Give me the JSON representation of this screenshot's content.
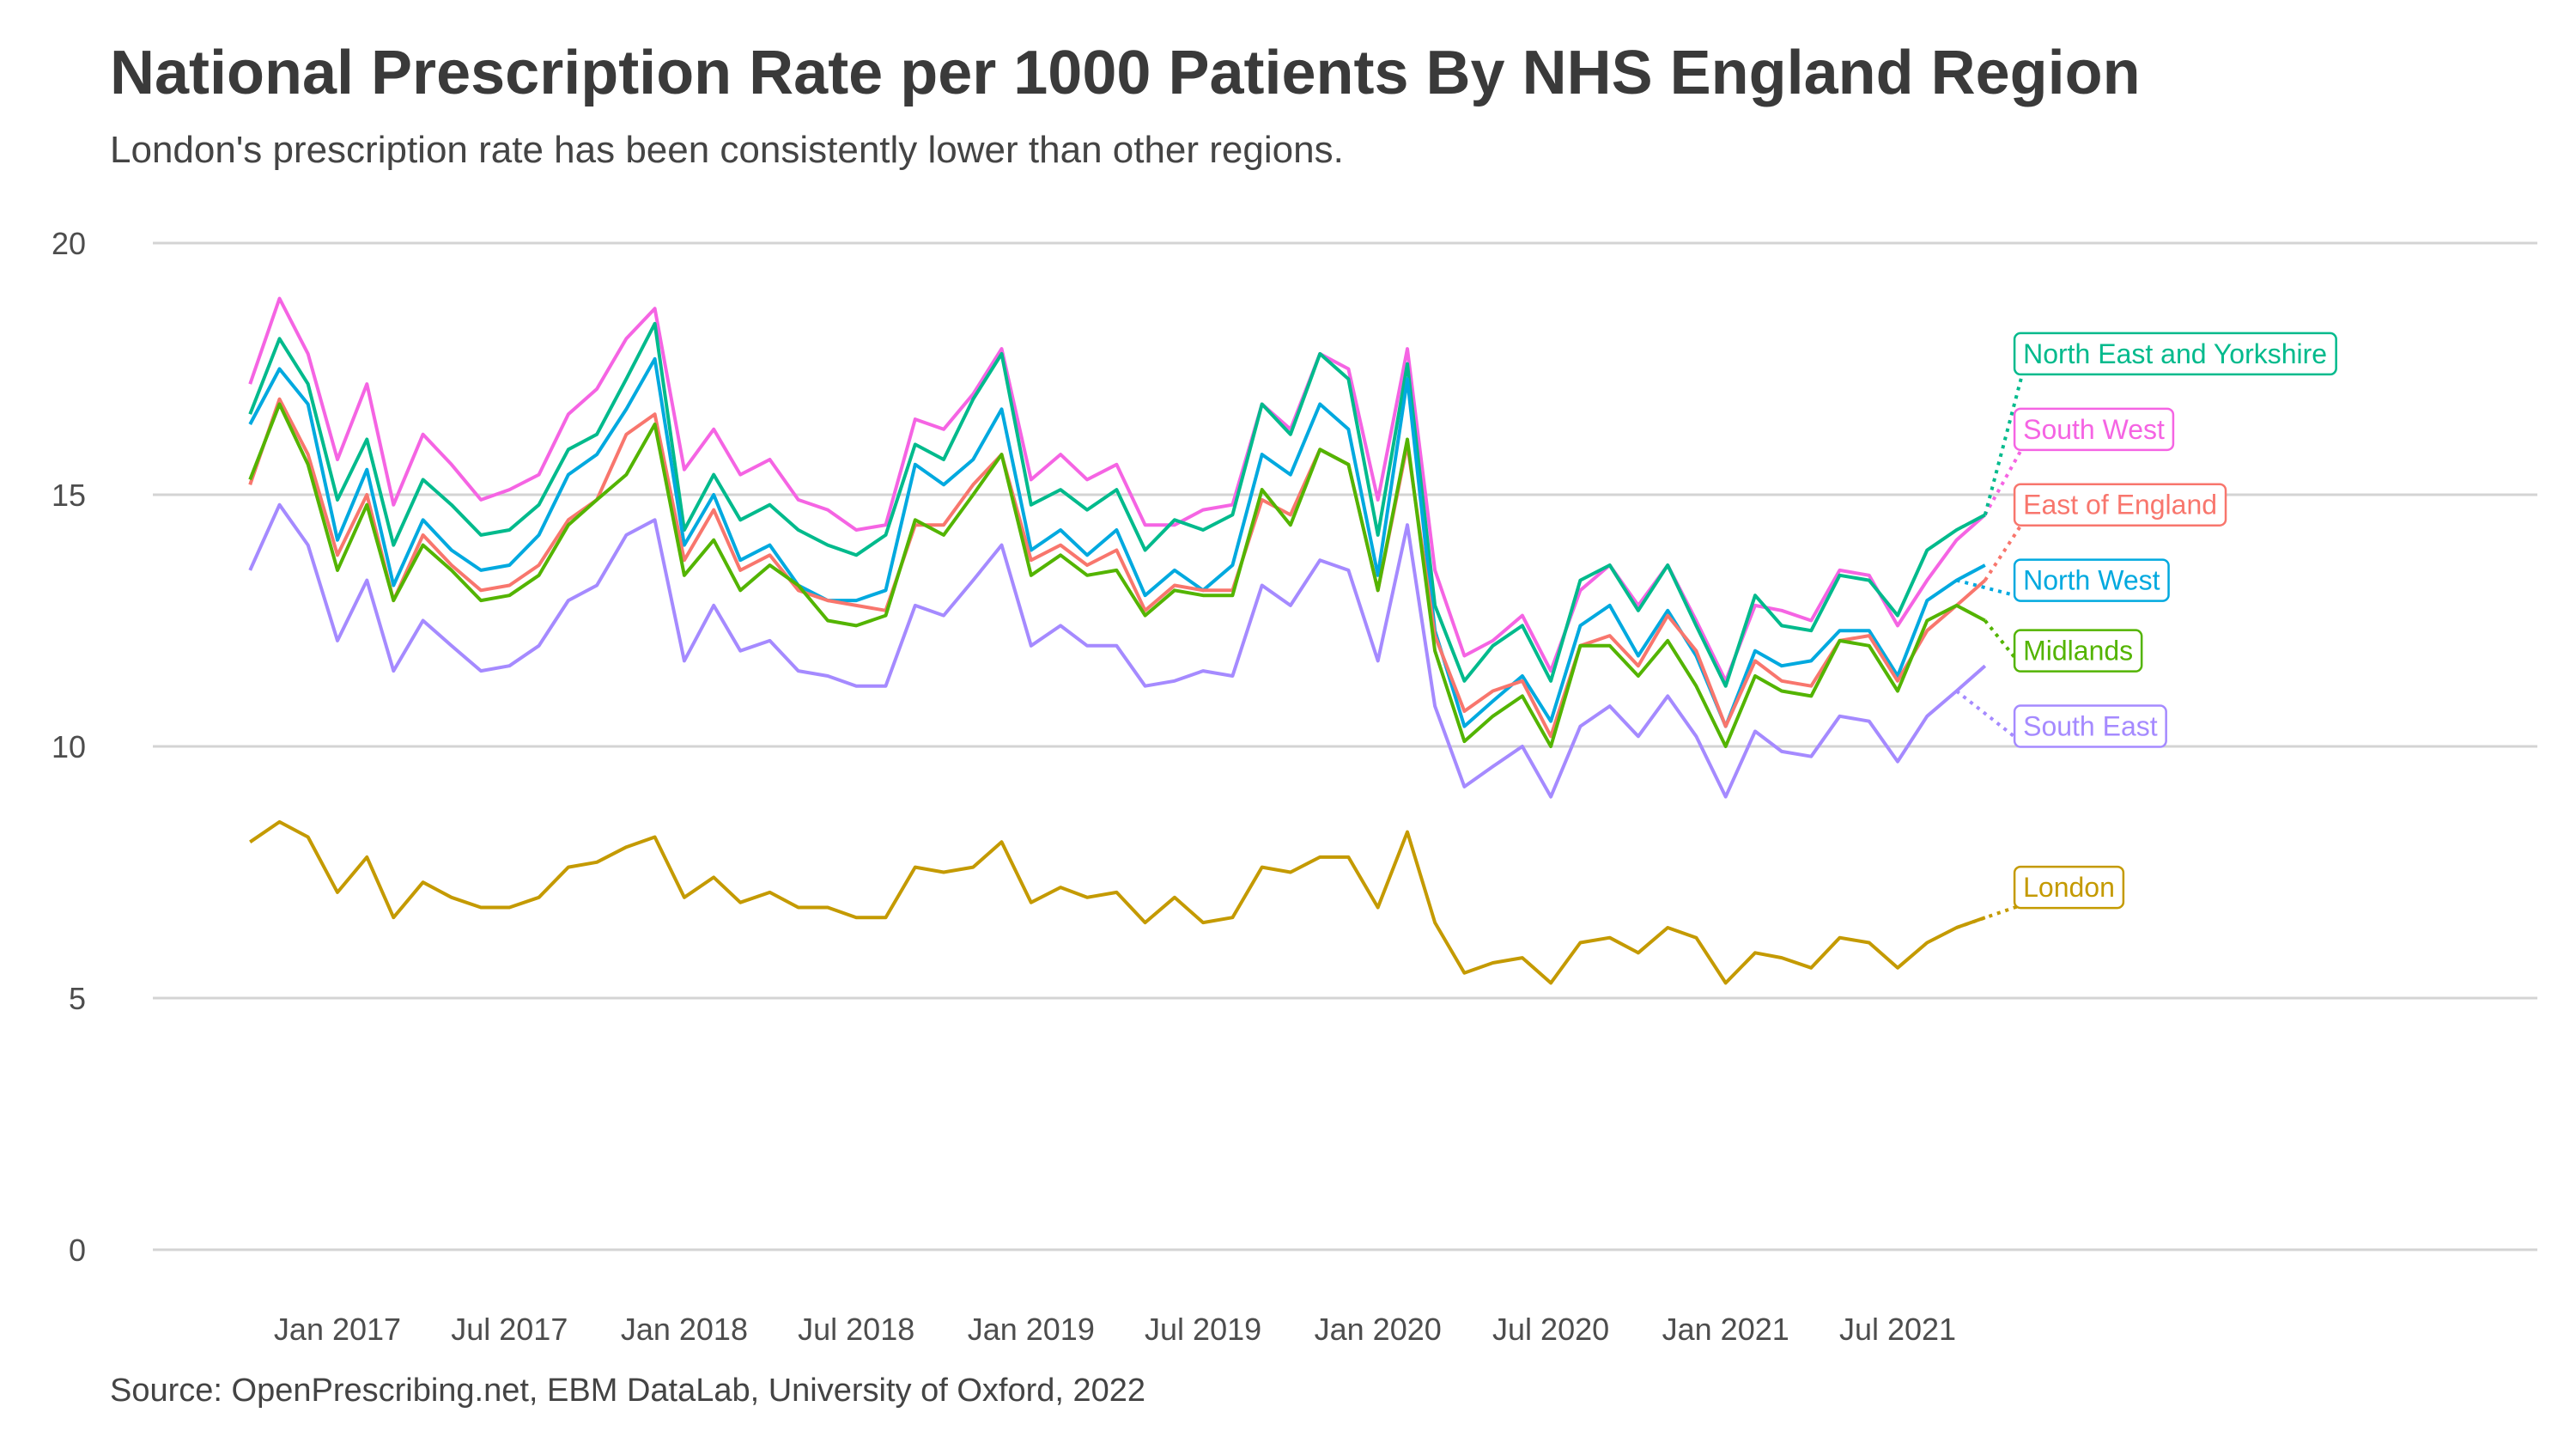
{
  "title": "National Prescription Rate per 1000 Patients By NHS England Region",
  "subtitle": "London's prescription rate has been consistently lower than other regions.",
  "caption": "Source: OpenPrescribing.net, EBM DataLab, University of Oxford, 2022",
  "chart_data": {
    "type": "line",
    "ylim": [
      0,
      20
    ],
    "yticks": [
      0,
      5,
      10,
      15,
      20
    ],
    "xlim": [
      "2016-09-01",
      "2022-11-01"
    ],
    "xticks": [
      {
        "date": "2017-01-01",
        "label": "Jan 2017"
      },
      {
        "date": "2017-07-01",
        "label": "Jul 2017"
      },
      {
        "date": "2018-01-01",
        "label": "Jan 2018"
      },
      {
        "date": "2018-07-01",
        "label": "Jul 2018"
      },
      {
        "date": "2019-01-01",
        "label": "Jan 2019"
      },
      {
        "date": "2019-07-01",
        "label": "Jul 2019"
      },
      {
        "date": "2020-01-01",
        "label": "Jan 2020"
      },
      {
        "date": "2020-07-01",
        "label": "Jul 2020"
      },
      {
        "date": "2021-01-01",
        "label": "Jan 2021"
      },
      {
        "date": "2021-07-01",
        "label": "Jul 2021"
      }
    ],
    "grid": "horizontal",
    "legend": "direct labels at line ends",
    "x": [
      "2016-10",
      "2016-11",
      "2016-12",
      "2017-01",
      "2017-02",
      "2017-03",
      "2017-04",
      "2017-05",
      "2017-06",
      "2017-07",
      "2017-08",
      "2017-09",
      "2017-10",
      "2017-11",
      "2017-12",
      "2018-01",
      "2018-02",
      "2018-03",
      "2018-04",
      "2018-05",
      "2018-06",
      "2018-07",
      "2018-08",
      "2018-09",
      "2018-10",
      "2018-11",
      "2018-12",
      "2019-01",
      "2019-02",
      "2019-03",
      "2019-04",
      "2019-05",
      "2019-06",
      "2019-07",
      "2019-08",
      "2019-09",
      "2019-10",
      "2019-11",
      "2019-12",
      "2020-01",
      "2020-02",
      "2020-03",
      "2020-04",
      "2020-05",
      "2020-06",
      "2020-07",
      "2020-08",
      "2020-09",
      "2020-10",
      "2020-11",
      "2020-12",
      "2021-01",
      "2021-02",
      "2021-03",
      "2021-04",
      "2021-05",
      "2021-06",
      "2021-07",
      "2021-08",
      "2021-09",
      "2021-10"
    ],
    "series": [
      {
        "name": "South West",
        "color": "#F564E3",
        "values": [
          17.2,
          18.9,
          17.8,
          15.7,
          17.2,
          14.8,
          16.2,
          15.6,
          14.9,
          15.1,
          15.4,
          16.6,
          17.1,
          18.1,
          18.7,
          15.5,
          16.3,
          15.4,
          15.7,
          14.9,
          14.7,
          14.3,
          14.4,
          16.5,
          16.3,
          17.0,
          17.9,
          15.3,
          15.8,
          15.3,
          15.6,
          14.4,
          14.4,
          14.7,
          14.8,
          16.8,
          16.3,
          17.8,
          17.5,
          14.9,
          17.9,
          13.5,
          11.8,
          12.1,
          12.6,
          11.5,
          13.1,
          13.6,
          12.8,
          13.6,
          12.5,
          11.3,
          12.8,
          12.7,
          12.5,
          13.5,
          13.4,
          12.4,
          13.3,
          14.1,
          14.6
        ],
        "endIndex": 60,
        "labelDate": "2021-11-01",
        "labelY": 16.3
      },
      {
        "name": "North East and Yorkshire",
        "color": "#00BA8C",
        "values": [
          16.6,
          18.1,
          17.2,
          14.9,
          16.1,
          14.0,
          15.3,
          14.8,
          14.2,
          14.3,
          14.8,
          15.9,
          16.2,
          17.3,
          18.4,
          14.3,
          15.4,
          14.5,
          14.8,
          14.3,
          14.0,
          13.8,
          14.2,
          16.0,
          15.7,
          16.9,
          17.8,
          14.8,
          15.1,
          14.7,
          15.1,
          13.9,
          14.5,
          14.3,
          14.6,
          16.8,
          16.2,
          17.8,
          17.3,
          14.2,
          17.6,
          12.8,
          11.3,
          12.0,
          12.4,
          11.3,
          13.3,
          13.6,
          12.7,
          13.6,
          12.4,
          11.2,
          13.0,
          12.4,
          12.3,
          13.4,
          13.3,
          12.6,
          13.9,
          14.3,
          14.6
        ],
        "endIndex": 60,
        "labelDate": "2021-11-01",
        "labelY": 17.8
      },
      {
        "name": "North West",
        "color": "#00A9DF",
        "values": [
          16.4,
          17.5,
          16.8,
          14.1,
          15.5,
          13.2,
          14.5,
          13.9,
          13.5,
          13.6,
          14.2,
          15.4,
          15.8,
          16.7,
          17.7,
          14.0,
          15.0,
          13.7,
          14.0,
          13.2,
          12.9,
          12.9,
          13.1,
          15.6,
          15.2,
          15.7,
          16.7,
          13.9,
          14.3,
          13.8,
          14.3,
          13.0,
          13.5,
          13.1,
          13.6,
          15.8,
          15.4,
          16.8,
          16.3,
          13.4,
          17.3,
          12.3,
          10.4,
          10.9,
          11.4,
          10.5,
          12.4,
          12.8,
          11.8,
          12.7,
          11.8,
          10.4,
          11.9,
          11.6,
          11.7,
          12.3,
          12.3,
          11.4,
          12.9,
          13.3,
          13.6
        ],
        "endIndex": 59,
        "labelDate": "2021-11-01",
        "labelY": 13.3
      },
      {
        "name": "East of England",
        "color": "#F8766D",
        "values": [
          15.2,
          16.9,
          15.8,
          13.8,
          15.0,
          12.9,
          14.2,
          13.6,
          13.1,
          13.2,
          13.6,
          14.5,
          14.9,
          16.2,
          16.6,
          13.7,
          14.7,
          13.5,
          13.8,
          13.1,
          12.9,
          12.8,
          12.7,
          14.4,
          14.4,
          15.2,
          15.8,
          13.7,
          14.0,
          13.6,
          13.9,
          12.7,
          13.2,
          13.1,
          13.1,
          14.9,
          14.6,
          15.9,
          15.6,
          13.1,
          16.0,
          12.2,
          10.7,
          11.1,
          11.3,
          10.2,
          12.0,
          12.2,
          11.6,
          12.6,
          11.9,
          10.4,
          11.7,
          11.3,
          11.2,
          12.1,
          12.2,
          11.3,
          12.3,
          12.8,
          13.3
        ],
        "endIndex": 60,
        "labelDate": "2021-11-01",
        "labelY": 14.8
      },
      {
        "name": "Midlands",
        "color": "#53B400",
        "values": [
          15.3,
          16.8,
          15.6,
          13.5,
          14.8,
          12.9,
          14.0,
          13.5,
          12.9,
          13.0,
          13.4,
          14.4,
          14.9,
          15.4,
          16.4,
          13.4,
          14.1,
          13.1,
          13.6,
          13.2,
          12.5,
          12.4,
          12.6,
          14.5,
          14.2,
          15.0,
          15.8,
          13.4,
          13.8,
          13.4,
          13.5,
          12.6,
          13.1,
          13.0,
          13.0,
          15.1,
          14.4,
          15.9,
          15.6,
          13.1,
          16.1,
          11.9,
          10.1,
          10.6,
          11.0,
          10.0,
          12.0,
          12.0,
          11.4,
          12.1,
          11.2,
          10.0,
          11.4,
          11.1,
          11.0,
          12.1,
          12.0,
          11.1,
          12.5,
          12.8,
          12.5
        ],
        "endIndex": 60,
        "labelDate": "2021-11-01",
        "labelY": 11.9
      },
      {
        "name": "South East",
        "color": "#A58AFF",
        "values": [
          13.5,
          14.8,
          14.0,
          12.1,
          13.3,
          11.5,
          12.5,
          12.0,
          11.5,
          11.6,
          12.0,
          12.9,
          13.2,
          14.2,
          14.5,
          11.7,
          12.8,
          11.9,
          12.1,
          11.5,
          11.4,
          11.2,
          11.2,
          12.8,
          12.6,
          13.3,
          14.0,
          12.0,
          12.4,
          12.0,
          12.0,
          11.2,
          11.3,
          11.5,
          11.4,
          13.2,
          12.8,
          13.7,
          13.5,
          11.7,
          14.4,
          10.8,
          9.2,
          9.6,
          10.0,
          9.0,
          10.4,
          10.8,
          10.2,
          11.0,
          10.2,
          9.0,
          10.3,
          9.9,
          9.8,
          10.6,
          10.5,
          9.7,
          10.6,
          11.1,
          11.6
        ],
        "endIndex": 59,
        "labelDate": "2021-11-01",
        "labelY": 10.4
      },
      {
        "name": "London",
        "color": "#C49A00",
        "values": [
          8.1,
          8.5,
          8.2,
          7.1,
          7.8,
          6.6,
          7.3,
          7.0,
          6.8,
          6.8,
          7.0,
          7.6,
          7.7,
          8.0,
          8.2,
          7.0,
          7.4,
          6.9,
          7.1,
          6.8,
          6.8,
          6.6,
          6.6,
          7.6,
          7.5,
          7.6,
          8.1,
          6.9,
          7.2,
          7.0,
          7.1,
          6.5,
          7.0,
          6.5,
          6.6,
          7.6,
          7.5,
          7.8,
          7.8,
          6.8,
          8.3,
          6.5,
          5.5,
          5.7,
          5.8,
          5.3,
          6.1,
          6.2,
          5.9,
          6.4,
          6.2,
          5.3,
          5.9,
          5.8,
          5.6,
          6.2,
          6.1,
          5.6,
          6.1,
          6.4,
          6.6
        ],
        "endIndex": 59,
        "labelDate": "2021-11-01",
        "labelY": 7.2
      }
    ]
  }
}
